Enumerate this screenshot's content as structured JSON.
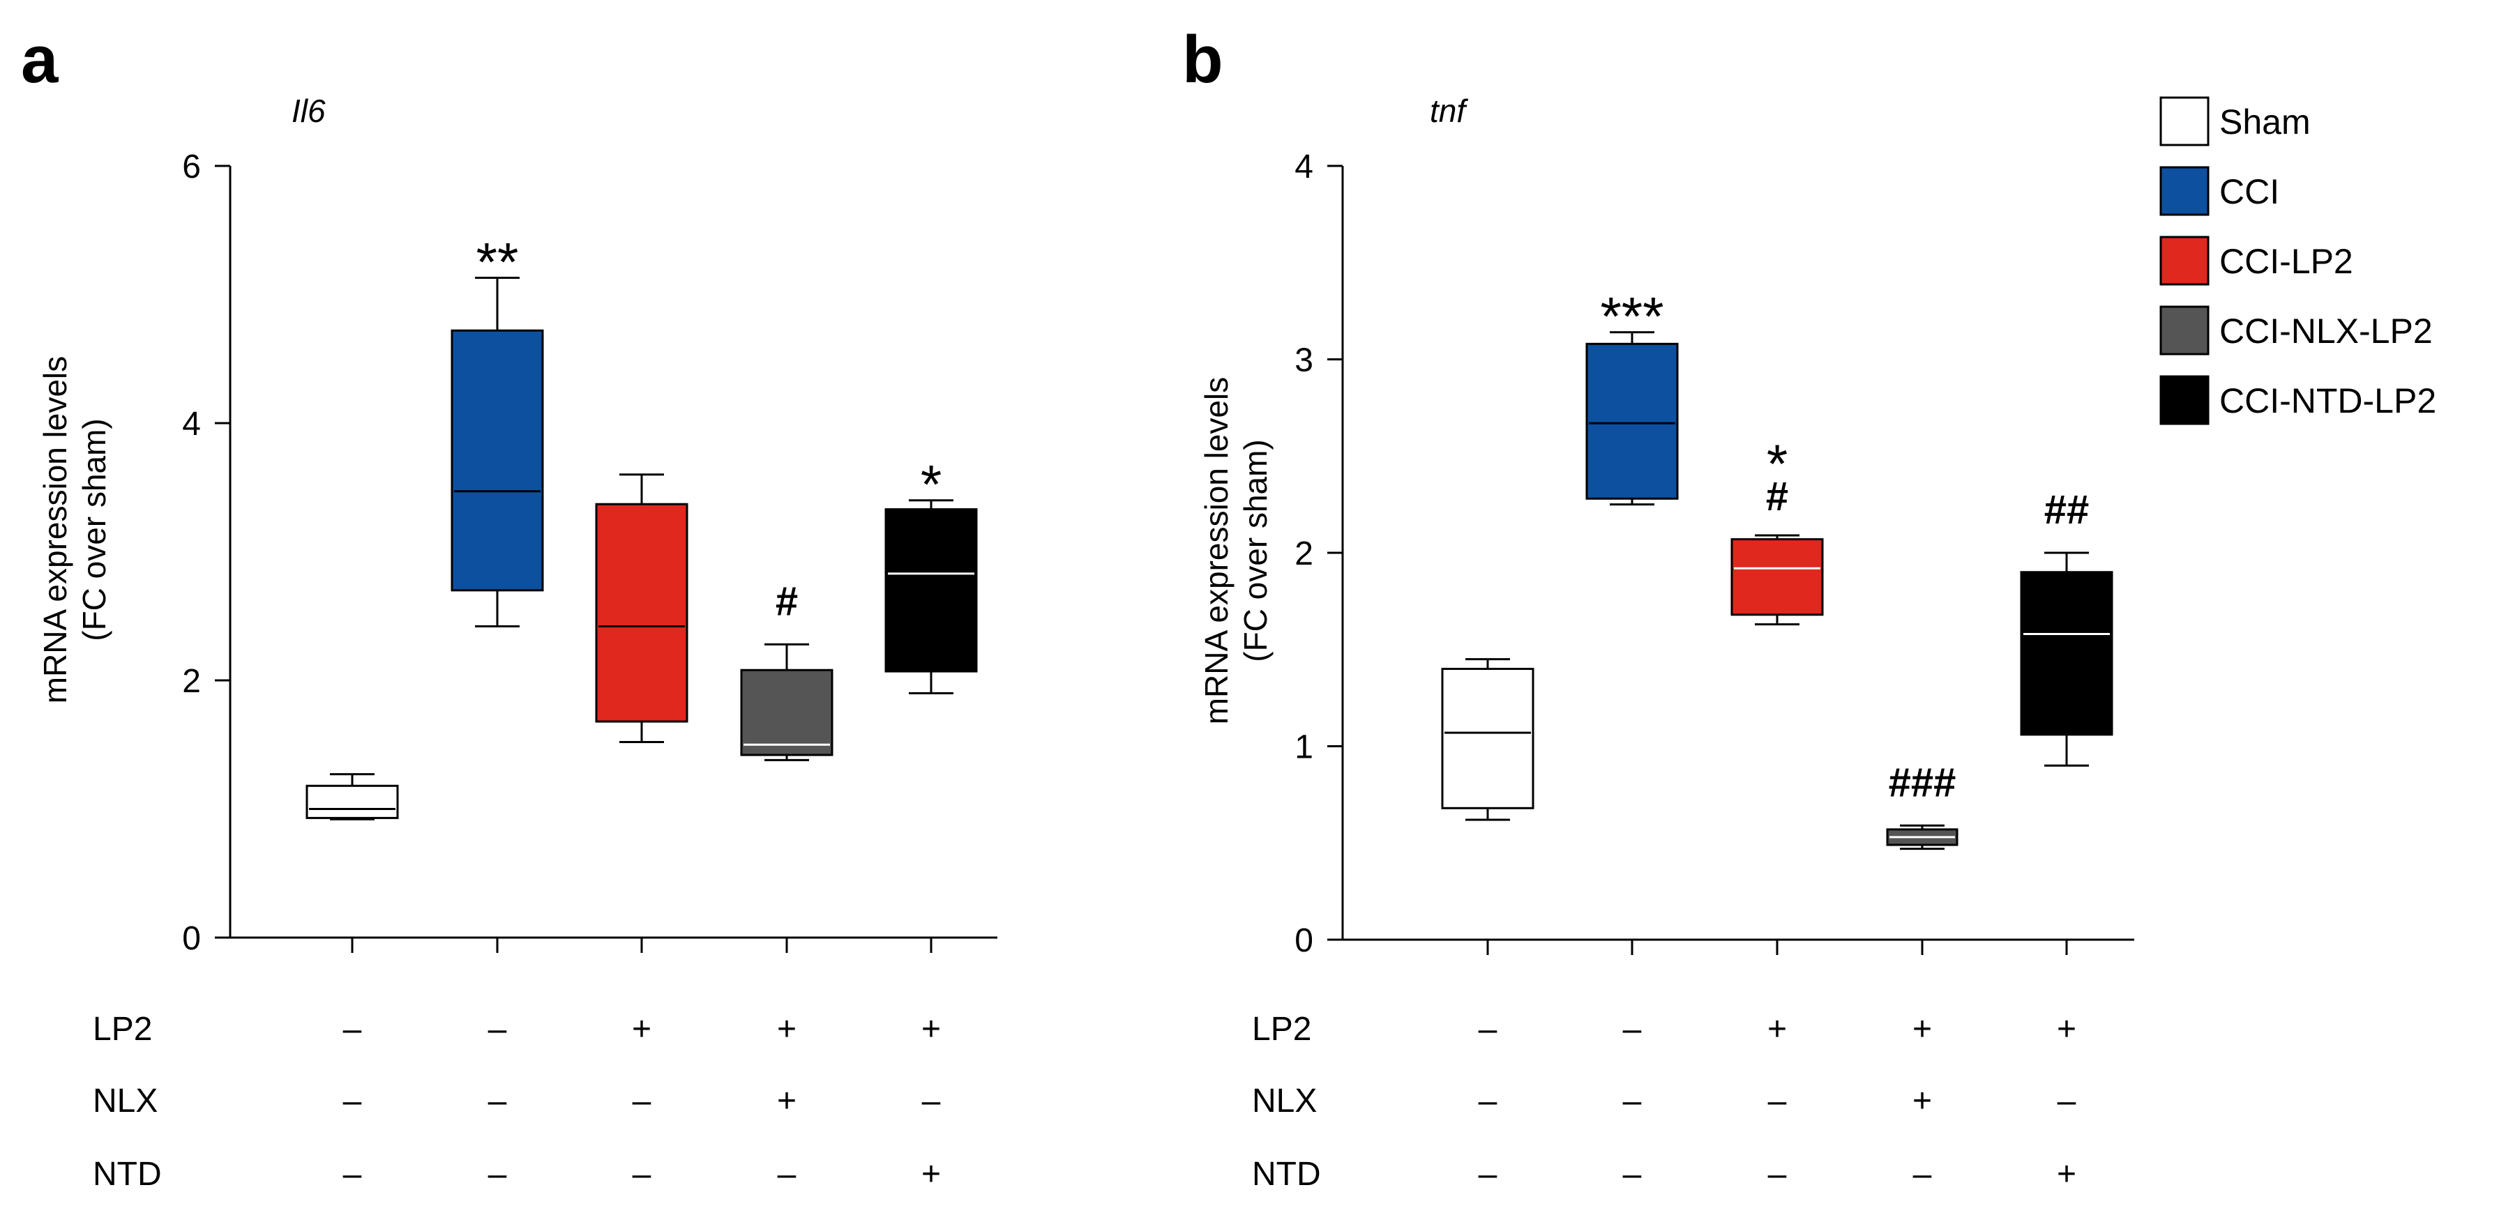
{
  "colors": {
    "sham": "#ffffff",
    "cci": "#0d50a0",
    "cci_lp2": "#e0281e",
    "cci_nlx_lp2": "#555555",
    "cci_ntd_lp2": "#000000",
    "axis": "#000000"
  },
  "legend": {
    "items": [
      {
        "label": "Sham",
        "color": "#ffffff"
      },
      {
        "label": "CCI",
        "color": "#0d50a0"
      },
      {
        "label": "CCI-LP2",
        "color": "#e0281e"
      },
      {
        "label": "CCI-NLX-LP2",
        "color": "#555555"
      },
      {
        "label": "CCI-NTD-LP2",
        "color": "#000000"
      }
    ]
  },
  "chart_data": [
    {
      "panel_label": "a",
      "type": "box",
      "title": "Il6",
      "ylabel_line1": "mRNA expression levels",
      "ylabel_line2": "(FC over sham)",
      "ylim": [
        0,
        6
      ],
      "yticks": [
        "0",
        "2",
        "4",
        "6"
      ],
      "categories": [
        "Sham",
        "CCI",
        "CCI-LP2",
        "CCI-NLX-LP2",
        "CCI-NTD-LP2"
      ],
      "boxes": [
        {
          "group": "Sham",
          "min": 0.92,
          "q1": 0.93,
          "median": 1.0,
          "q3": 1.18,
          "max": 1.27,
          "color": "#ffffff",
          "median_color": "#000000",
          "annotation": ""
        },
        {
          "group": "CCI",
          "min": 2.42,
          "q1": 2.7,
          "median": 3.47,
          "q3": 4.72,
          "max": 5.13,
          "color": "#0d50a0",
          "median_color": "#000000",
          "annotation": "**"
        },
        {
          "group": "CCI-LP2",
          "min": 1.52,
          "q1": 1.68,
          "median": 2.42,
          "q3": 3.37,
          "max": 3.6,
          "color": "#e0281e",
          "median_color": "#000000",
          "annotation": ""
        },
        {
          "group": "CCI-NLX-LP2",
          "min": 1.38,
          "q1": 1.42,
          "median": 1.5,
          "q3": 2.08,
          "max": 2.28,
          "color": "#555555",
          "median_color": "#ffffff",
          "annotation": "#"
        },
        {
          "group": "CCI-NTD-LP2",
          "min": 1.9,
          "q1": 2.07,
          "median": 2.83,
          "q3": 3.33,
          "max": 3.4,
          "color": "#000000",
          "median_color": "#ffffff",
          "annotation": "*"
        }
      ],
      "treatments": [
        {
          "name": "LP2",
          "values": [
            "–",
            "–",
            "+",
            "+",
            "+"
          ]
        },
        {
          "name": "NLX",
          "values": [
            "–",
            "–",
            "–",
            "+",
            "–"
          ]
        },
        {
          "name": "NTD",
          "values": [
            "–",
            "–",
            "–",
            "–",
            "+"
          ]
        }
      ]
    },
    {
      "panel_label": "b",
      "type": "box",
      "title": "tnf",
      "ylabel_line1": "mRNA expression levels",
      "ylabel_line2": "(FC over sham)",
      "ylim": [
        0,
        4
      ],
      "yticks": [
        "0",
        "1",
        "2",
        "3",
        "4"
      ],
      "categories": [
        "Sham",
        "CCI",
        "CCI-LP2",
        "CCI-NLX-LP2",
        "CCI-NTD-LP2"
      ],
      "boxes": [
        {
          "group": "Sham",
          "min": 0.62,
          "q1": 0.68,
          "median": 1.07,
          "q3": 1.4,
          "max": 1.45,
          "color": "#ffffff",
          "median_color": "#000000",
          "annotation": ""
        },
        {
          "group": "CCI",
          "min": 2.25,
          "q1": 2.28,
          "median": 2.67,
          "q3": 3.08,
          "max": 3.14,
          "color": "#0d50a0",
          "median_color": "#000000",
          "annotation": "***"
        },
        {
          "group": "CCI-LP2",
          "min": 1.63,
          "q1": 1.68,
          "median": 1.92,
          "q3": 2.07,
          "max": 2.09,
          "color": "#e0281e",
          "median_color": "#ffffff",
          "annotation": "*",
          "annotation2": "#"
        },
        {
          "group": "CCI-NLX-LP2",
          "min": 0.47,
          "q1": 0.49,
          "median": 0.53,
          "q3": 0.57,
          "max": 0.59,
          "color": "#555555",
          "median_color": "#ffffff",
          "annotation": "###"
        },
        {
          "group": "CCI-NTD-LP2",
          "min": 0.9,
          "q1": 1.06,
          "median": 1.58,
          "q3": 1.9,
          "max": 2.0,
          "color": "#000000",
          "median_color": "#ffffff",
          "annotation": "##"
        }
      ],
      "treatments": [
        {
          "name": "LP2",
          "values": [
            "–",
            "–",
            "+",
            "+",
            "+"
          ]
        },
        {
          "name": "NLX",
          "values": [
            "–",
            "–",
            "–",
            "+",
            "–"
          ]
        },
        {
          "name": "NTD",
          "values": [
            "–",
            "–",
            "–",
            "–",
            "+"
          ]
        }
      ]
    }
  ]
}
